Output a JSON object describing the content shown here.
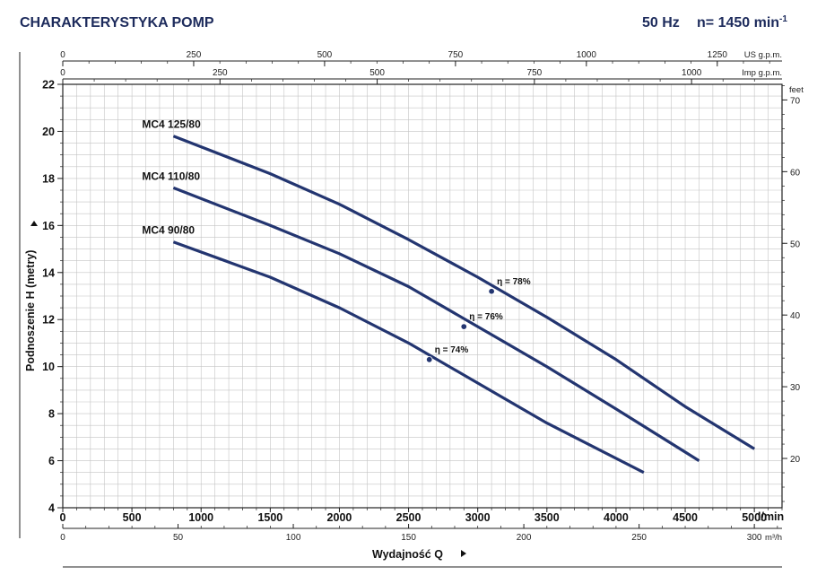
{
  "header": {
    "title": "CHARAKTERYSTYKA POMP",
    "frequency": "50 Hz",
    "speed": "n= 1450 min",
    "speed_sup": "-1"
  },
  "chart_data": {
    "type": "line",
    "title": "CHARAKTERYSTYKA POMP",
    "xlabel": "Wydajność Q",
    "ylabel": "Podnoszenie H (metry)",
    "xlim": [
      0,
      5200
    ],
    "ylim": [
      4,
      22
    ],
    "grid": true,
    "x_units": "l/min",
    "x_ticks": [
      0,
      500,
      1000,
      1500,
      2000,
      2500,
      3000,
      3500,
      4000,
      4500,
      5000
    ],
    "y_ticks": [
      4,
      6,
      8,
      10,
      12,
      14,
      16,
      18,
      20,
      22
    ],
    "secondary_axes": {
      "us_gpm": {
        "label": "US g.p.m.",
        "ticks": [
          0,
          250,
          500,
          750,
          1000,
          1250
        ]
      },
      "imp_gpm": {
        "label": "Imp g.p.m.",
        "ticks": [
          0,
          250,
          500,
          750,
          1000
        ]
      },
      "m3h": {
        "label": "m³/h",
        "ticks": [
          0,
          50,
          100,
          150,
          200,
          250,
          300
        ]
      },
      "feet": {
        "label": "feet",
        "ticks": [
          20,
          30,
          40,
          50,
          60,
          70
        ]
      }
    },
    "series": [
      {
        "name": "MC4 125/80",
        "x": [
          800,
          1500,
          2000,
          2500,
          3000,
          3500,
          4000,
          4500,
          5000
        ],
        "y": [
          19.8,
          18.2,
          16.9,
          15.4,
          13.8,
          12.1,
          10.3,
          8.3,
          6.5
        ],
        "efficiency_point": {
          "x": 3100,
          "y": 13.2,
          "label": "η = 78%"
        }
      },
      {
        "name": "MC4 110/80",
        "x": [
          800,
          1500,
          2000,
          2500,
          3000,
          3500,
          4000,
          4600
        ],
        "y": [
          17.6,
          16.0,
          14.8,
          13.4,
          11.7,
          10.0,
          8.2,
          6.0
        ],
        "efficiency_point": {
          "x": 2900,
          "y": 11.7,
          "label": "η = 76%"
        }
      },
      {
        "name": "MC4 90/80",
        "x": [
          800,
          1500,
          2000,
          2500,
          3000,
          3500,
          4200
        ],
        "y": [
          15.3,
          13.8,
          12.5,
          11.0,
          9.3,
          7.6,
          5.5
        ],
        "efficiency_point": {
          "x": 2650,
          "y": 10.3,
          "label": "η = 74%"
        }
      }
    ]
  },
  "colors": {
    "curve": "#233570",
    "header": "#1d2b5c",
    "grid": "#c4c4c4"
  }
}
